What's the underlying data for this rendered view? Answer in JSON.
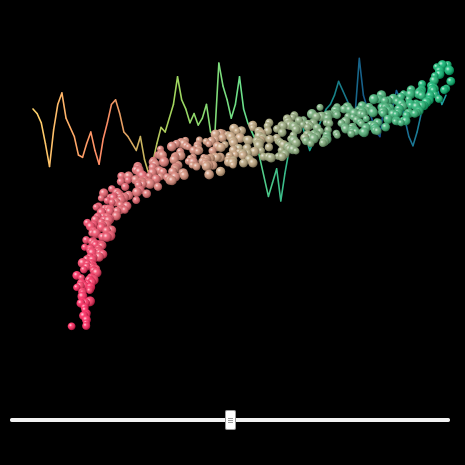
{
  "chart_data": {
    "type": "scatter",
    "title": "",
    "xlabel": "",
    "ylabel": "",
    "grid": false,
    "legend": "none",
    "view": "3d",
    "background": "#000000",
    "xlim": [
      0,
      100
    ],
    "ylim": [
      0,
      100
    ],
    "series": [
      {
        "type": "line",
        "description_colors": [
          "#ffd36b",
          "#ff8a66",
          "#a3d65c",
          "#6ce08a",
          "#1aa58a",
          "#16498a",
          "#1fa6a0"
        ],
        "x": [
          0,
          1,
          2,
          3,
          4,
          5,
          6,
          7,
          8,
          9,
          10,
          11,
          12,
          13,
          14,
          15,
          16,
          17,
          18,
          19,
          20,
          21,
          22,
          23,
          24,
          25,
          26,
          27,
          28,
          29,
          30,
          31,
          32,
          33,
          34,
          35,
          36,
          37,
          38,
          39,
          40,
          41,
          42,
          43,
          44,
          45,
          46,
          47,
          48,
          49,
          50,
          51,
          52,
          53,
          54,
          55,
          56,
          57,
          58,
          59,
          60,
          61,
          62,
          63,
          64,
          65,
          66,
          67,
          68,
          69,
          70,
          71,
          72,
          73,
          74,
          75,
          76,
          77,
          78,
          79,
          80,
          81,
          82,
          83,
          84,
          85,
          86,
          87,
          88,
          89,
          90,
          91,
          92,
          93,
          94,
          95,
          96,
          97,
          98,
          99,
          100
        ],
        "y": [
          70,
          68,
          64,
          55,
          45,
          61,
          72,
          77,
          66,
          62,
          58,
          50,
          49,
          55,
          60,
          52,
          46,
          57,
          64,
          72,
          74,
          68,
          60,
          58,
          55,
          52,
          58,
          48,
          42,
          47,
          55,
          62,
          60,
          66,
          72,
          84,
          74,
          70,
          64,
          68,
          63,
          66,
          72,
          60,
          58,
          90,
          80,
          74,
          66,
          72,
          84,
          70,
          64,
          60,
          56,
          48,
          40,
          32,
          38,
          44,
          30,
          42,
          52,
          56,
          60,
          64,
          58,
          52,
          56,
          62,
          66,
          70,
          72,
          76,
          82,
          78,
          74,
          70,
          68,
          92,
          76,
          70,
          66,
          60,
          58,
          72,
          74,
          70,
          78,
          74,
          66,
          58,
          54,
          60,
          68,
          74,
          80,
          84,
          78,
          72,
          76
        ]
      },
      {
        "type": "scatter",
        "color_start": "#ff1a55",
        "color_mid": "#c9a07a",
        "color_end": "#00b36b",
        "x": [
          8,
          9,
          9,
          10,
          10,
          11,
          11,
          12,
          12,
          13,
          14,
          15,
          16,
          18,
          20,
          22,
          24,
          26,
          28,
          30,
          32,
          34,
          36,
          38,
          40,
          42,
          44,
          46,
          48,
          50,
          52,
          54,
          56,
          58,
          60,
          62,
          64,
          66,
          68,
          70,
          72,
          74,
          76,
          78,
          80,
          82,
          84,
          86,
          88,
          90,
          92,
          94,
          96,
          98,
          100
        ],
        "y": [
          10,
          14,
          18,
          22,
          25,
          28,
          30,
          33,
          36,
          38,
          40,
          43,
          46,
          48,
          50,
          53,
          55,
          57,
          58,
          59,
          60,
          61,
          61,
          62,
          62,
          63,
          63,
          64,
          65,
          65,
          66,
          67,
          67,
          68,
          68,
          69,
          70,
          70,
          71,
          72,
          72,
          73,
          74,
          74,
          75,
          75,
          76,
          77,
          77,
          78,
          79,
          80,
          81,
          84,
          88
        ]
      }
    ]
  },
  "slider": {
    "value": 0.5
  }
}
